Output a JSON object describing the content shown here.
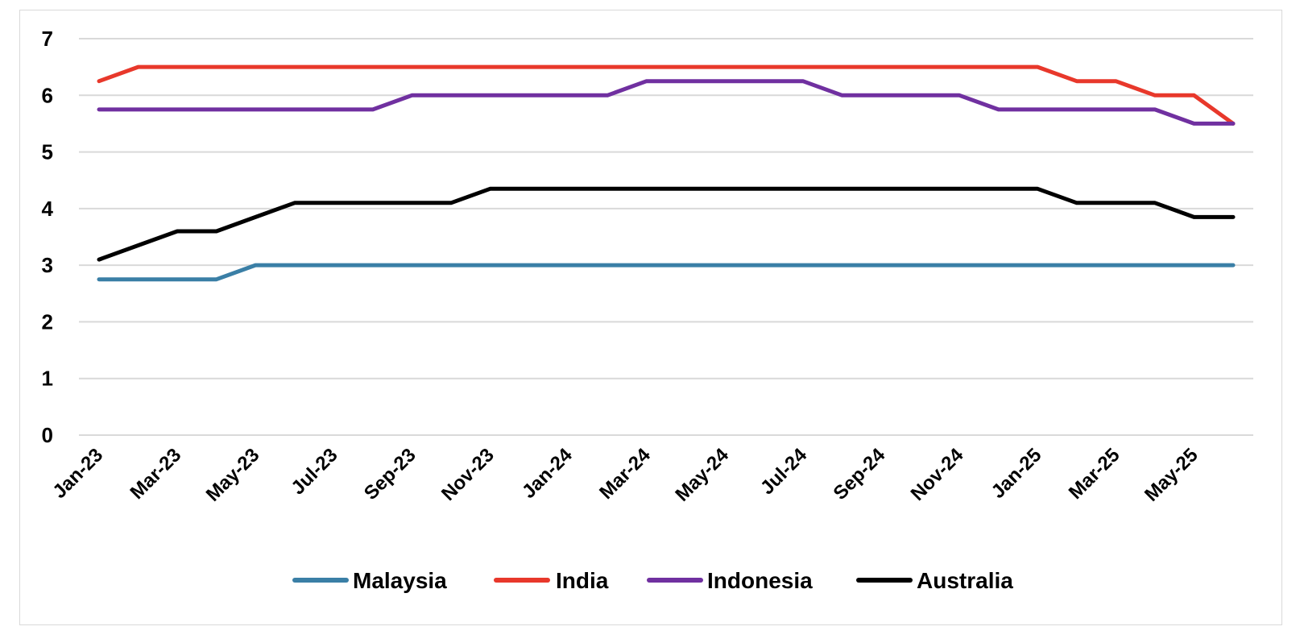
{
  "chart_data": {
    "type": "line",
    "title": "",
    "xlabel": "",
    "ylabel": "",
    "ylim": [
      0,
      7
    ],
    "yticks": [
      0,
      1,
      2,
      3,
      4,
      5,
      6,
      7
    ],
    "grid": "horizontal",
    "legend": "bottom",
    "x": [
      "Jan-23",
      "Feb-23",
      "Mar-23",
      "Apr-23",
      "May-23",
      "Jun-23",
      "Jul-23",
      "Aug-23",
      "Sep-23",
      "Oct-23",
      "Nov-23",
      "Dec-23",
      "Jan-24",
      "Feb-24",
      "Mar-24",
      "Apr-24",
      "May-24",
      "Jun-24",
      "Jul-24",
      "Aug-24",
      "Sep-24",
      "Oct-24",
      "Nov-24",
      "Dec-24",
      "Jan-25",
      "Feb-25",
      "Mar-25",
      "Apr-25",
      "May-25",
      "Jun-25"
    ],
    "x_tick_labels": [
      "Jan-23",
      "Mar-23",
      "May-23",
      "Jul-23",
      "Sep-23",
      "Nov-23",
      "Jan-24",
      "Mar-24",
      "May-24",
      "Jul-24",
      "Sep-24",
      "Nov-24",
      "Jan-25",
      "Mar-25",
      "May-25"
    ],
    "series": [
      {
        "name": "Malaysia",
        "color": "#3a7fa6",
        "values": [
          2.75,
          2.75,
          2.75,
          2.75,
          3,
          3,
          3,
          3,
          3,
          3,
          3,
          3,
          3,
          3,
          3,
          3,
          3,
          3,
          3,
          3,
          3,
          3,
          3,
          3,
          3,
          3,
          3,
          3,
          3,
          3
        ]
      },
      {
        "name": "India",
        "color": "#e8382b",
        "values": [
          6.25,
          6.5,
          6.5,
          6.5,
          6.5,
          6.5,
          6.5,
          6.5,
          6.5,
          6.5,
          6.5,
          6.5,
          6.5,
          6.5,
          6.5,
          6.5,
          6.5,
          6.5,
          6.5,
          6.5,
          6.5,
          6.5,
          6.5,
          6.5,
          6.5,
          6.25,
          6.25,
          6,
          6,
          5.5
        ]
      },
      {
        "name": "Indonesia",
        "color": "#7030a0",
        "values": [
          5.75,
          5.75,
          5.75,
          5.75,
          5.75,
          5.75,
          5.75,
          5.75,
          6,
          6,
          6,
          6,
          6,
          6,
          6.25,
          6.25,
          6.25,
          6.25,
          6.25,
          6,
          6,
          6,
          6,
          5.75,
          5.75,
          5.75,
          5.75,
          5.75,
          5.5,
          5.5
        ]
      },
      {
        "name": "Australia",
        "color": "#000000",
        "values": [
          3.1,
          3.35,
          3.6,
          3.6,
          3.85,
          4.1,
          4.1,
          4.1,
          4.1,
          4.1,
          4.35,
          4.35,
          4.35,
          4.35,
          4.35,
          4.35,
          4.35,
          4.35,
          4.35,
          4.35,
          4.35,
          4.35,
          4.35,
          4.35,
          4.35,
          4.1,
          4.1,
          4.1,
          3.85,
          3.85
        ]
      }
    ]
  }
}
